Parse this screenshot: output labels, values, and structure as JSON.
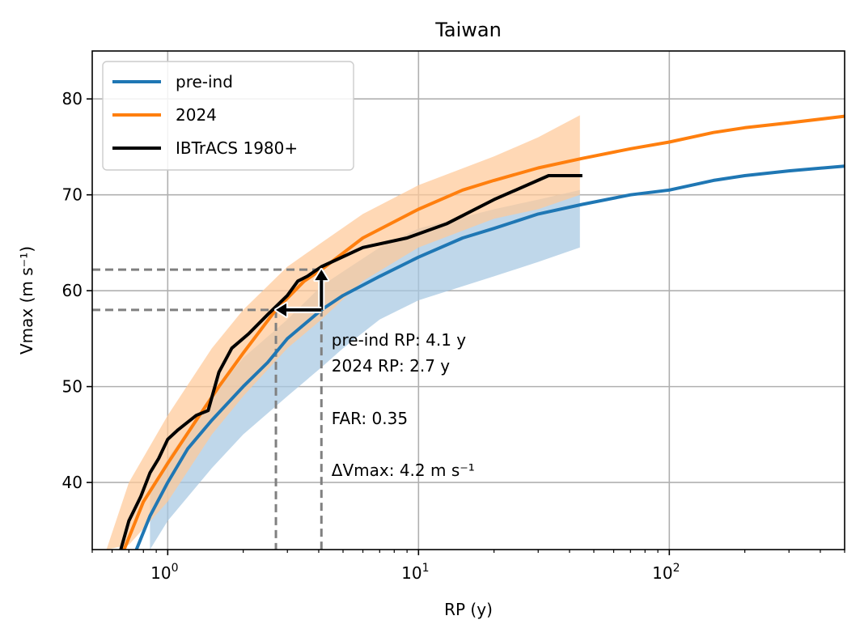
{
  "chart_data": {
    "type": "line",
    "title": "Taiwan",
    "xlabel": "RP (y)",
    "ylabel": "Vmax (m s⁻¹)",
    "xscale": "log",
    "xlim": [
      0.5,
      500
    ],
    "ylim": [
      33,
      85
    ],
    "grid": true,
    "legend_placement": "top-left",
    "x_ticks": [
      {
        "value": 1,
        "base": "10",
        "exp": "0"
      },
      {
        "value": 10,
        "base": "10",
        "exp": "1"
      },
      {
        "value": 100,
        "base": "10",
        "exp": "2"
      }
    ],
    "y_ticks": [
      {
        "value": 40,
        "label": "40"
      },
      {
        "value": 50,
        "label": "50"
      },
      {
        "value": 60,
        "label": "60"
      },
      {
        "value": 70,
        "label": "70"
      },
      {
        "value": 80,
        "label": "80"
      }
    ],
    "series": [
      {
        "name": "pre-ind",
        "color": "#1f77b4",
        "band_color": "#a6c8e2",
        "x": [
          0.75,
          0.85,
          1.0,
          1.2,
          1.5,
          2.0,
          2.5,
          3.0,
          4.1,
          5.0,
          7.0,
          10.0,
          15.0,
          20.0,
          30.0,
          45.0,
          70.0,
          100.0,
          150.0,
          200.0,
          300.0,
          500.0
        ],
        "y": [
          33.0,
          36.5,
          40.0,
          43.5,
          46.5,
          50.0,
          52.5,
          55.0,
          58.0,
          59.5,
          61.5,
          63.5,
          65.5,
          66.5,
          68.0,
          69.0,
          70.0,
          70.5,
          71.5,
          72.0,
          72.5,
          73.0
        ],
        "band": {
          "x": [
            0.85,
            1.0,
            1.5,
            2.0,
            3.0,
            4.1,
            5.0,
            7.0,
            10.0,
            20.0,
            30.0,
            44.0
          ],
          "lower": [
            33.0,
            36.0,
            41.5,
            45.0,
            49.0,
            52.0,
            54.0,
            57.0,
            59.0,
            61.5,
            63.0,
            64.5
          ],
          "upper": [
            39.0,
            42.5,
            49.0,
            53.0,
            57.0,
            60.5,
            62.0,
            64.5,
            66.5,
            68.5,
            69.5,
            70.5
          ]
        }
      },
      {
        "name": "2024",
        "color": "#ff7f0e",
        "band_color": "#ffc999",
        "x": [
          0.67,
          0.8,
          1.0,
          1.3,
          1.6,
          2.0,
          2.7,
          3.5,
          4.1,
          6.0,
          10.0,
          15.0,
          20.0,
          30.0,
          45.0,
          70.0,
          100.0,
          150.0,
          200.0,
          300.0,
          500.0
        ],
        "y": [
          33.0,
          38.0,
          42.0,
          46.5,
          50.0,
          53.5,
          58.0,
          61.0,
          62.2,
          65.5,
          68.5,
          70.5,
          71.5,
          72.8,
          73.8,
          74.8,
          75.5,
          76.5,
          77.0,
          77.5,
          78.2
        ],
        "band": {
          "x": [
            0.57,
            0.7,
            1.0,
            1.5,
            2.0,
            3.0,
            4.1,
            6.0,
            10.0,
            20.0,
            30.0,
            44.0
          ],
          "lower": [
            33.0,
            33.5,
            38.0,
            45.0,
            49.0,
            54.0,
            57.0,
            61.0,
            64.5,
            67.5,
            68.5,
            70.0
          ],
          "upper": [
            33.0,
            40.0,
            47.0,
            54.0,
            58.0,
            62.5,
            65.0,
            68.0,
            71.0,
            74.0,
            76.0,
            78.3
          ]
        }
      },
      {
        "name": "IBTrACS 1980+",
        "color": "#000000",
        "x": [
          0.65,
          0.7,
          0.78,
          0.85,
          0.92,
          1.0,
          1.1,
          1.3,
          1.45,
          1.6,
          1.8,
          2.1,
          2.5,
          3.0,
          3.3,
          3.6,
          4.1,
          6.0,
          9.0,
          13.0,
          20.0,
          33.0,
          45.0
        ],
        "y": [
          33.0,
          36.0,
          38.5,
          41.0,
          42.5,
          44.5,
          45.5,
          47.0,
          47.5,
          51.5,
          54.0,
          55.5,
          57.5,
          59.5,
          61.0,
          61.5,
          62.5,
          64.5,
          65.5,
          67.0,
          69.5,
          72.0,
          72.0
        ]
      }
    ],
    "reference_lines": {
      "color": "#808080",
      "vmax_preind": 58.0,
      "vmax_2024": 62.2,
      "rp_preind": 4.1,
      "rp_2024": 2.7
    },
    "annotations": {
      "lines": [
        "pre-ind RP: 4.1 y",
        "2024 RP: 2.7 y",
        "FAR: 0.35",
        "ΔVmax: 4.2 m s⁻¹"
      ],
      "anchor_x": 4.5
    }
  }
}
